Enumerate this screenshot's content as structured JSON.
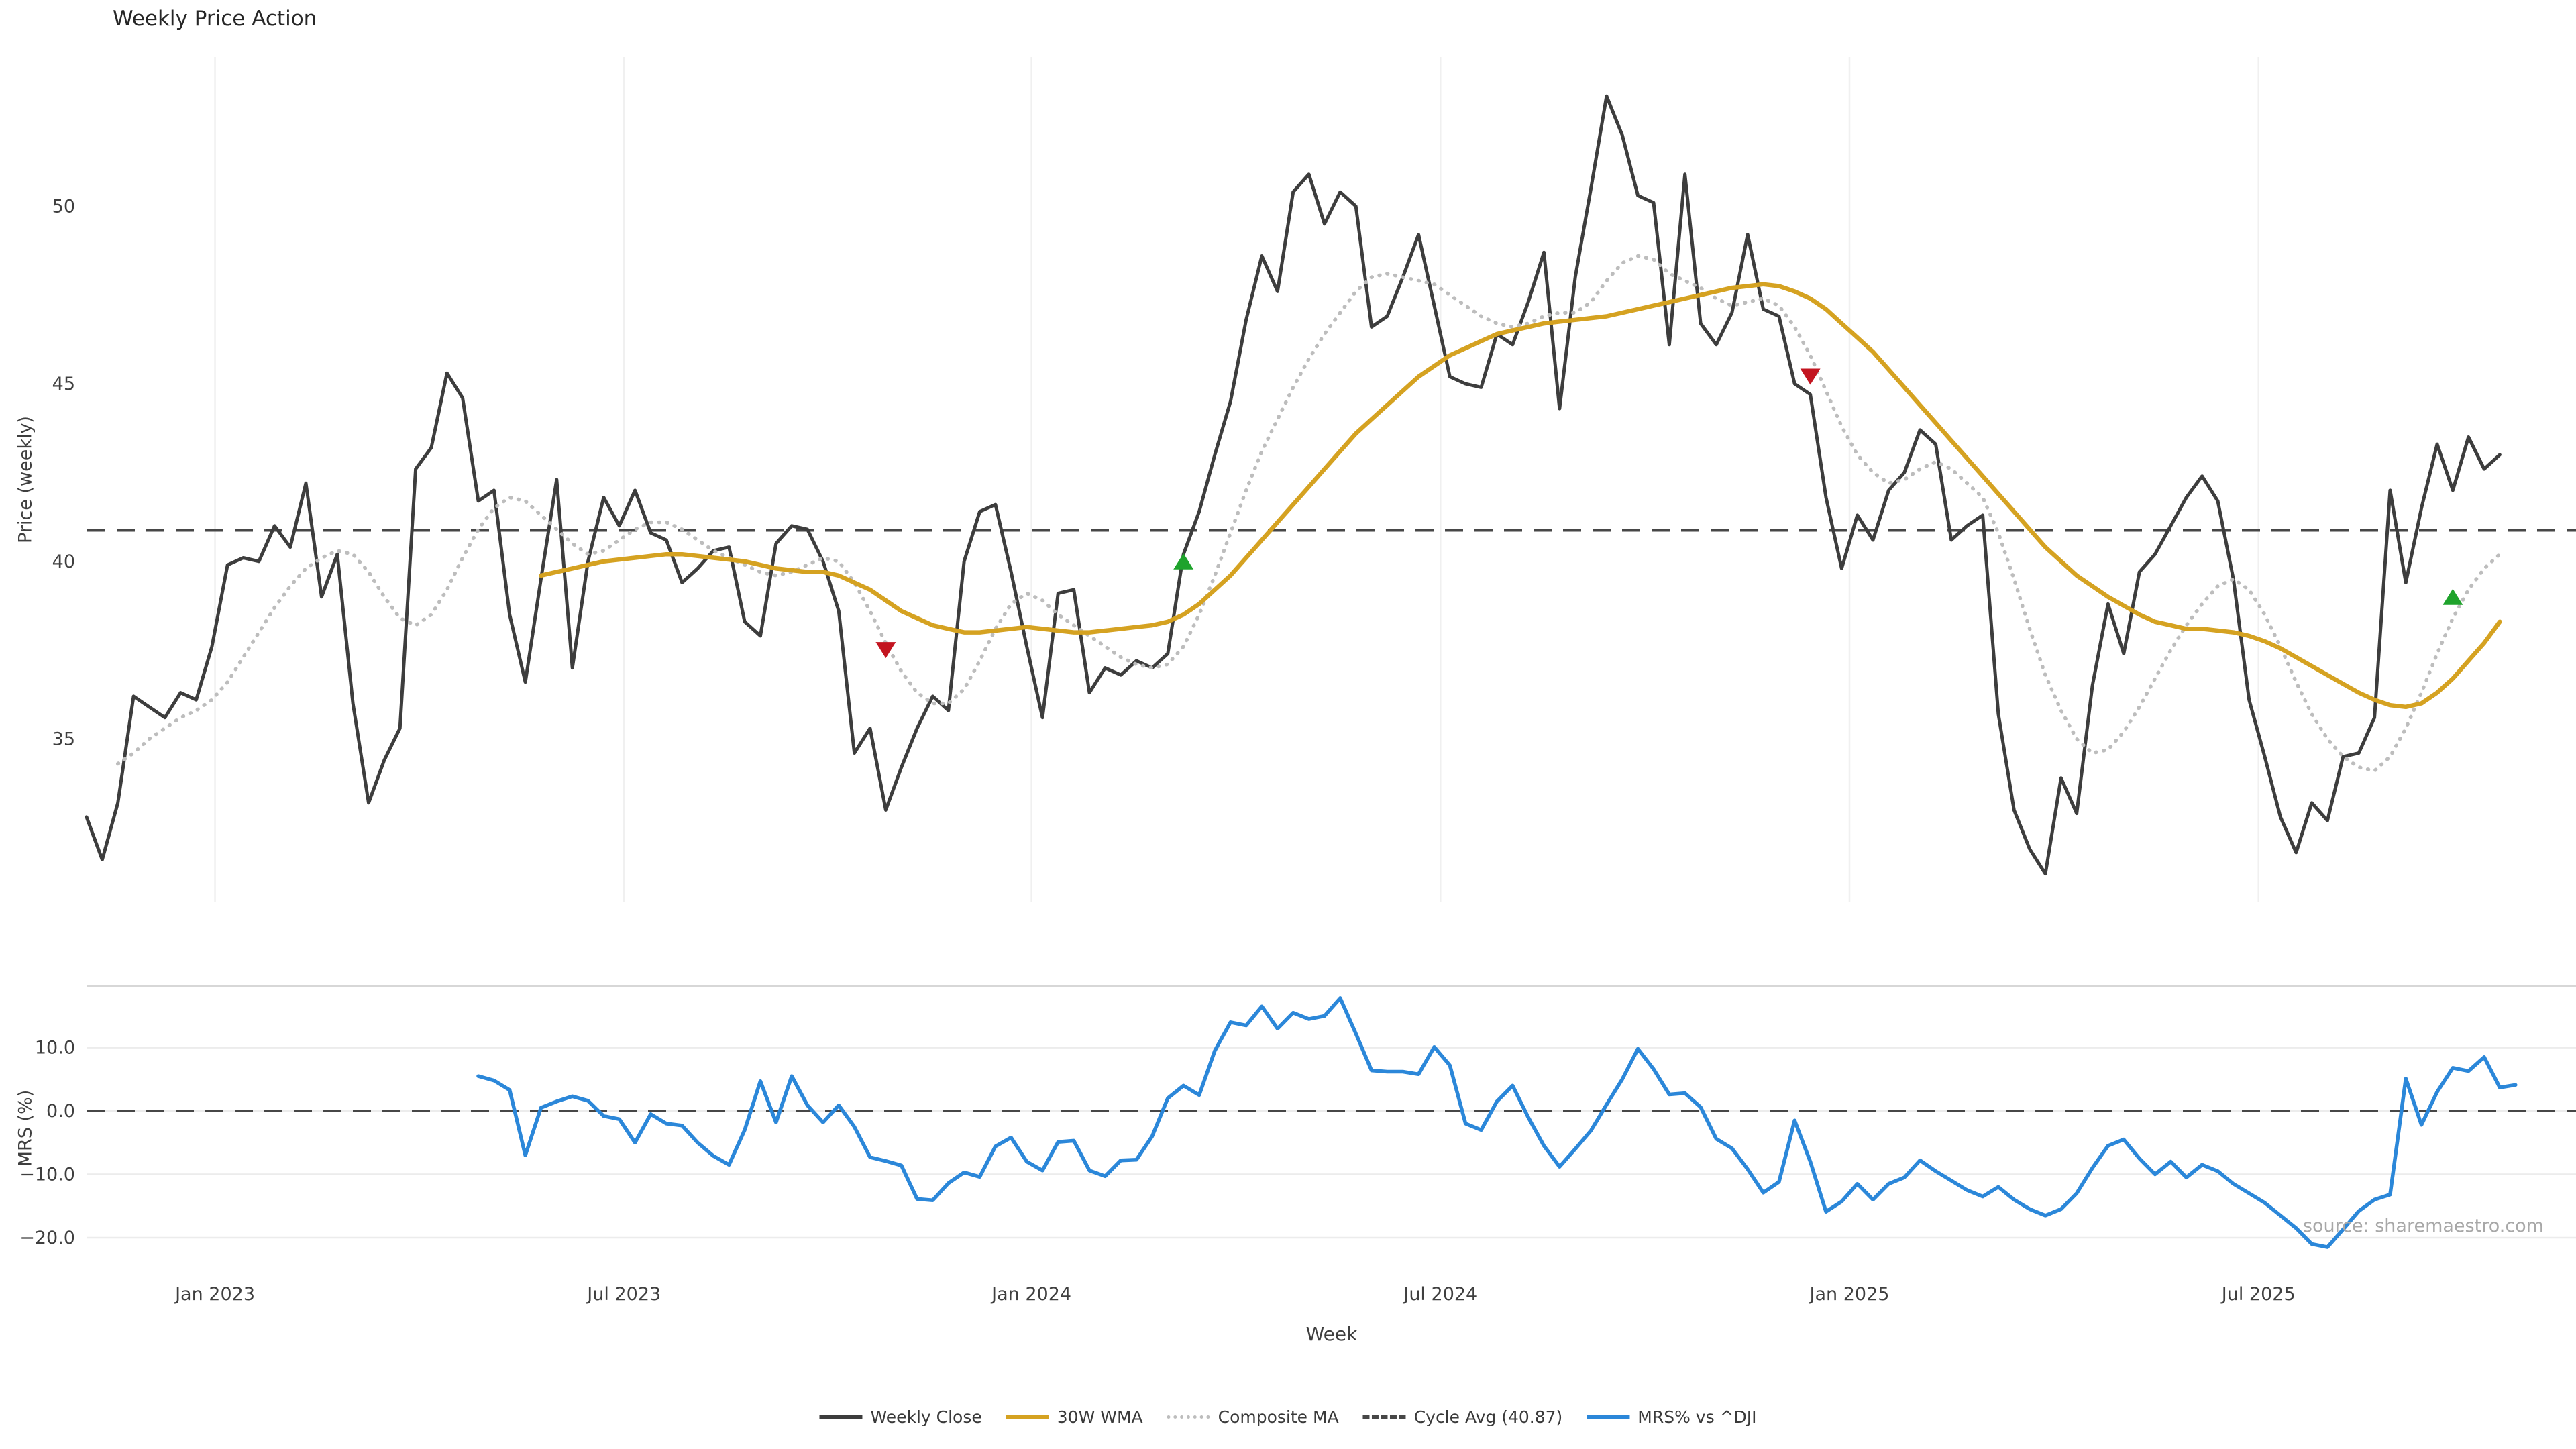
{
  "title": "Weekly Price Action",
  "source_text": "source: sharemaestro.com",
  "legend": [
    {
      "label": "Weekly Close",
      "color": "#3d3d3d",
      "style": "solid"
    },
    {
      "label": "30W WMA",
      "color": "#d5a221",
      "style": "solid-thick"
    },
    {
      "label": "Composite MA",
      "color": "#bdbdbd",
      "style": "dotted"
    },
    {
      "label": "Cycle Avg (40.87)",
      "color": "#474747",
      "style": "dashed"
    },
    {
      "label": "MRS% vs ^DJI",
      "color": "#2b87d9",
      "style": "solid"
    }
  ],
  "chart_data": {
    "type": "line",
    "x_unit": "week_index",
    "xlabel": "Week",
    "x_ticks": [
      {
        "index": 8.2,
        "label": "Jan 2023"
      },
      {
        "index": 34.3,
        "label": "Jul 2023"
      },
      {
        "index": 60.3,
        "label": "Jan 2024"
      },
      {
        "index": 86.4,
        "label": "Jul 2024"
      },
      {
        "index": 112.5,
        "label": "Jan 2025"
      },
      {
        "index": 138.6,
        "label": "Jul 2025"
      }
    ],
    "price_panel": {
      "ylabel": "Price (weekly)",
      "ylim": [
        30.4,
        54.2
      ],
      "yticks": [
        35,
        40,
        45,
        50
      ],
      "cycle_avg": 40.87,
      "grid": "vertical",
      "series": [
        {
          "name": "Weekly Close",
          "color": "#3d3d3d",
          "width": 5,
          "style": "solid",
          "start_week": 0,
          "values": [
            32.8,
            31.6,
            33.2,
            36.2,
            35.9,
            35.6,
            36.3,
            36.1,
            37.6,
            39.9,
            40.1,
            40.0,
            41.0,
            40.4,
            42.2,
            39.0,
            40.2,
            36.0,
            33.2,
            34.4,
            35.3,
            42.6,
            43.2,
            45.3,
            44.6,
            41.7,
            42.0,
            38.5,
            36.6,
            39.5,
            42.3,
            37.0,
            40.0,
            41.8,
            41.0,
            42.0,
            40.8,
            40.6,
            39.4,
            39.8,
            40.3,
            40.4,
            38.3,
            37.9,
            40.5,
            41.0,
            40.9,
            40.0,
            38.6,
            34.6,
            35.3,
            33.0,
            34.2,
            35.3,
            36.2,
            35.8,
            40.0,
            41.4,
            41.6,
            39.7,
            37.6,
            35.6,
            39.1,
            39.2,
            36.3,
            37.0,
            36.8,
            37.2,
            37.0,
            37.4,
            40.2,
            41.4,
            43.0,
            44.5,
            46.8,
            48.6,
            47.6,
            50.4,
            50.9,
            49.5,
            50.4,
            50.0,
            46.6,
            46.9,
            48.0,
            49.2,
            47.2,
            45.2,
            45.0,
            44.9,
            46.4,
            46.1,
            47.3,
            48.7,
            44.3,
            48.0,
            50.5,
            53.1,
            52.0,
            50.3,
            50.1,
            46.1,
            50.9,
            46.7,
            46.1,
            47.0,
            49.2,
            47.1,
            46.9,
            45.0,
            44.7,
            41.8,
            39.8,
            41.3,
            40.6,
            42.0,
            42.5,
            43.7,
            43.3,
            40.6,
            41.0,
            41.3,
            35.7,
            33.0,
            31.9,
            31.2,
            33.9,
            32.9,
            36.5,
            38.8,
            37.4,
            39.7,
            40.2,
            41.0,
            41.8,
            42.4,
            41.7,
            39.5,
            36.1,
            34.5,
            32.8,
            31.8,
            33.2,
            32.7,
            34.5,
            34.6,
            35.6,
            42.0,
            39.4,
            41.5,
            43.3,
            42.0,
            43.5,
            42.6,
            43.0
          ]
        },
        {
          "name": "30W WMA",
          "color": "#d5a221",
          "width": 6.5,
          "style": "solid",
          "start_week": 29,
          "values": [
            39.6,
            39.7,
            39.8,
            39.9,
            40.0,
            40.05,
            40.1,
            40.15,
            40.2,
            40.2,
            40.15,
            40.1,
            40.05,
            40.0,
            39.9,
            39.8,
            39.75,
            39.7,
            39.7,
            39.6,
            39.4,
            39.2,
            38.9,
            38.6,
            38.4,
            38.2,
            38.1,
            38.0,
            38.0,
            38.05,
            38.1,
            38.15,
            38.1,
            38.05,
            38.0,
            38.0,
            38.05,
            38.1,
            38.15,
            38.2,
            38.3,
            38.5,
            38.8,
            39.2,
            39.6,
            40.1,
            40.6,
            41.1,
            41.6,
            42.1,
            42.6,
            43.1,
            43.6,
            44.0,
            44.4,
            44.8,
            45.2,
            45.5,
            45.8,
            46.0,
            46.2,
            46.4,
            46.5,
            46.6,
            46.7,
            46.75,
            46.8,
            46.85,
            46.9,
            47.0,
            47.1,
            47.2,
            47.3,
            47.4,
            47.5,
            47.6,
            47.7,
            47.75,
            47.8,
            47.75,
            47.6,
            47.4,
            47.1,
            46.7,
            46.3,
            45.9,
            45.4,
            44.9,
            44.4,
            43.9,
            43.4,
            42.9,
            42.4,
            41.9,
            41.4,
            40.9,
            40.4,
            40.0,
            39.6,
            39.3,
            39.0,
            38.75,
            38.5,
            38.3,
            38.2,
            38.1,
            38.1,
            38.05,
            38.0,
            37.9,
            37.75,
            37.55,
            37.3,
            37.05,
            36.8,
            36.55,
            36.3,
            36.1,
            35.95,
            35.9,
            36.0,
            36.3,
            36.7,
            37.2,
            37.7,
            38.3
          ]
        },
        {
          "name": "Composite MA",
          "color": "#bdbdbd",
          "width": 4,
          "style": "dotted",
          "start_week": 2,
          "values": [
            34.3,
            34.6,
            35.0,
            35.3,
            35.6,
            35.8,
            36.1,
            36.6,
            37.3,
            38.0,
            38.7,
            39.3,
            39.8,
            40.1,
            40.3,
            40.2,
            39.7,
            39.0,
            38.4,
            38.2,
            38.5,
            39.2,
            40.1,
            40.9,
            41.5,
            41.8,
            41.7,
            41.3,
            40.9,
            40.5,
            40.2,
            40.3,
            40.6,
            40.9,
            41.1,
            41.1,
            40.9,
            40.6,
            40.3,
            40.1,
            39.9,
            39.7,
            39.6,
            39.7,
            39.9,
            40.1,
            40.0,
            39.4,
            38.6,
            37.7,
            36.9,
            36.3,
            36.0,
            36.0,
            36.4,
            37.2,
            38.1,
            38.8,
            39.1,
            38.9,
            38.5,
            38.2,
            37.9,
            37.6,
            37.3,
            37.1,
            37.0,
            37.1,
            37.6,
            38.5,
            39.6,
            40.8,
            42.0,
            43.1,
            44.0,
            44.9,
            45.7,
            46.4,
            47.0,
            47.6,
            48.0,
            48.1,
            48.0,
            47.9,
            47.8,
            47.5,
            47.2,
            46.9,
            46.7,
            46.6,
            46.7,
            46.9,
            47.0,
            47.0,
            47.3,
            47.9,
            48.4,
            48.6,
            48.5,
            48.1,
            47.9,
            47.7,
            47.4,
            47.2,
            47.3,
            47.4,
            47.2,
            46.6,
            45.8,
            44.8,
            43.8,
            43.0,
            42.5,
            42.2,
            42.3,
            42.6,
            42.8,
            42.6,
            42.2,
            41.8,
            40.8,
            39.5,
            38.1,
            36.8,
            35.8,
            35.0,
            34.6,
            34.7,
            35.2,
            35.9,
            36.7,
            37.5,
            38.2,
            38.8,
            39.3,
            39.5,
            39.2,
            38.5,
            37.6,
            36.6,
            35.7,
            35.0,
            34.5,
            34.2,
            34.1,
            34.5,
            35.3,
            36.3,
            37.4,
            38.4,
            39.2,
            39.8,
            40.2
          ]
        }
      ],
      "sell_markers": [
        {
          "week": 51,
          "price": 37.5
        },
        {
          "week": 110,
          "price": 45.2
        }
      ],
      "buy_markers": [
        {
          "week": 70,
          "price": 40.0
        },
        {
          "week": 151,
          "price": 39.0
        }
      ],
      "marker_colors": {
        "buy": "#1fa32c",
        "sell": "#c31520"
      }
    },
    "mrs_panel": {
      "ylabel": "MRS (%)",
      "ylim": [
        -25.3,
        19.7
      ],
      "yticks": [
        10,
        0,
        -10,
        -20
      ],
      "ytick_labels": [
        "10.0",
        "0.0",
        "−10.0",
        "−20.0"
      ],
      "zero_line": 0,
      "grid": "horizontal",
      "series": [
        {
          "name": "MRS% vs ^DJI",
          "color": "#2b87d9",
          "width": 5.5,
          "style": "solid",
          "start_week": 25,
          "values": [
            5.5,
            4.8,
            3.3,
            -7.0,
            0.5,
            1.5,
            2.3,
            1.6,
            -0.8,
            -1.3,
            -5.0,
            -0.5,
            -2.0,
            -2.3,
            -5.0,
            -7.1,
            -8.5,
            -3.0,
            4.7,
            -1.8,
            5.5,
            0.9,
            -1.8,
            0.9,
            -2.5,
            -7.3,
            -7.9,
            -8.6,
            -13.9,
            -14.1,
            -11.4,
            -9.7,
            -10.4,
            -5.6,
            -4.2,
            -8.0,
            -9.4,
            -4.9,
            -4.7,
            -9.4,
            -10.3,
            -7.8,
            -7.7,
            -4.0,
            2.0,
            4.0,
            2.5,
            9.5,
            14.0,
            13.5,
            16.5,
            13.0,
            15.5,
            14.5,
            15.0,
            17.8,
            12.2,
            6.4,
            6.2,
            6.2,
            5.8,
            10.1,
            7.2,
            -2.0,
            -3.0,
            1.5,
            4.0,
            -1.0,
            -5.5,
            -8.8,
            -6.0,
            -3.1,
            1.0,
            5.0,
            9.8,
            6.6,
            2.6,
            2.8,
            0.6,
            -4.4,
            -5.9,
            -9.2,
            -12.9,
            -11.2,
            -1.5,
            -8.0,
            -15.9,
            -14.3,
            -11.5,
            -14.0,
            -11.5,
            -10.5,
            -7.8,
            -9.5,
            -11.0,
            -12.5,
            -13.5,
            -12.0,
            -14.0,
            -15.5,
            -16.5,
            -15.5,
            -13.0,
            -9.0,
            -5.5,
            -4.5,
            -7.5,
            -10.0,
            -8.0,
            -10.5,
            -8.5,
            -9.5,
            -11.5,
            -13.0,
            -14.5,
            -16.5,
            -18.5,
            -21.0,
            -21.5,
            -18.7,
            -15.8,
            -14.0,
            -13.2,
            5.1,
            -2.2,
            3.0,
            6.8,
            6.3,
            8.5,
            3.7,
            4.1
          ]
        }
      ]
    }
  }
}
